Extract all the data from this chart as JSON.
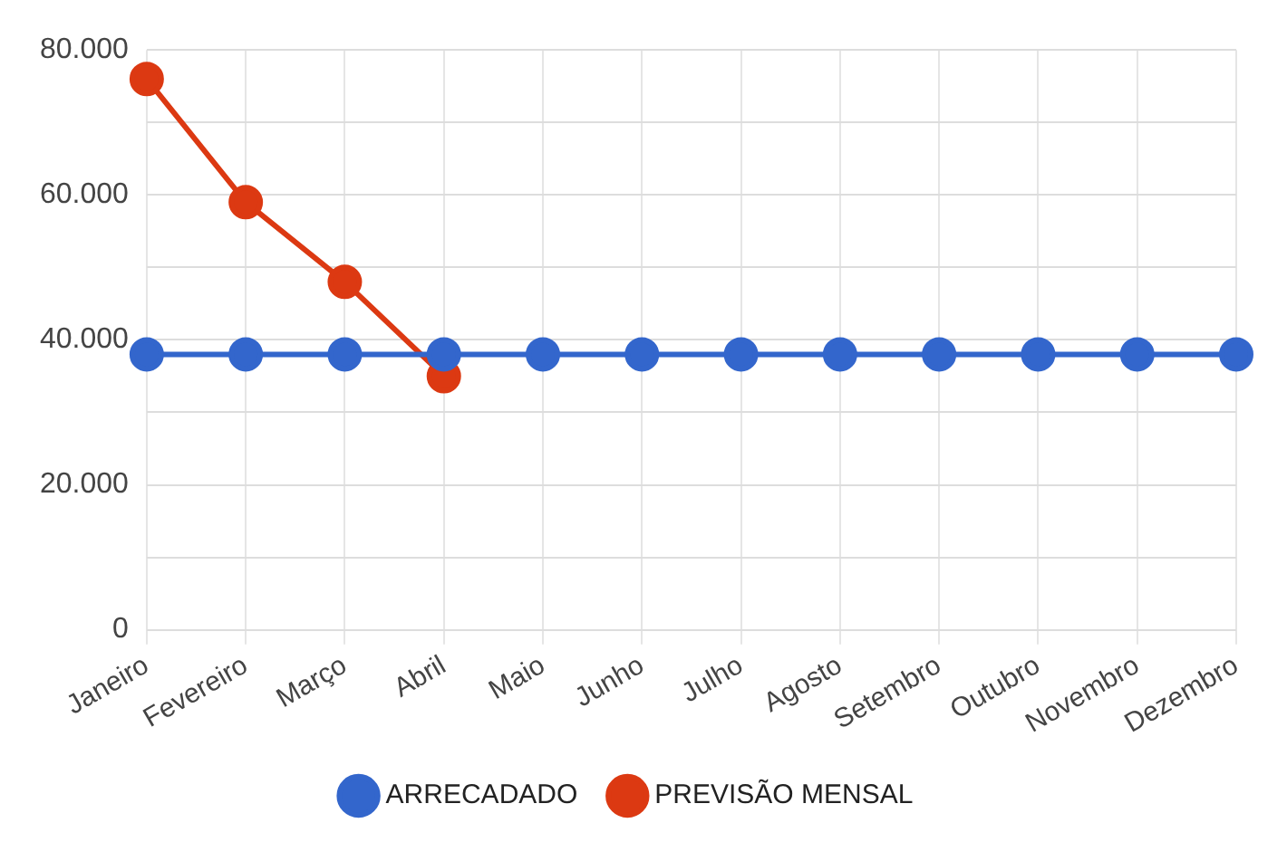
{
  "chart_data": {
    "type": "line",
    "categories": [
      "Janeiro",
      "Fevereiro",
      "Março",
      "Abril",
      "Maio",
      "Junho",
      "Julho",
      "Agosto",
      "Setembro",
      "Outubro",
      "Novembro",
      "Dezembro"
    ],
    "series": [
      {
        "name": "ARRECADADO",
        "color": "#3366cc",
        "values": [
          38000,
          38000,
          38000,
          38000,
          38000,
          38000,
          38000,
          38000,
          38000,
          38000,
          38000,
          38000
        ]
      },
      {
        "name": "PREVISÃO MENSAL",
        "color": "#dc3912",
        "values": [
          76000,
          59000,
          48000,
          35000,
          null,
          null,
          null,
          null,
          null,
          null,
          null,
          null
        ]
      }
    ],
    "ylim": [
      0,
      80000
    ],
    "yticks": [
      {
        "value": 0,
        "label": "0"
      },
      {
        "value": 10000,
        "label": null
      },
      {
        "value": 20000,
        "label": "20.000"
      },
      {
        "value": 30000,
        "label": null
      },
      {
        "value": 40000,
        "label": "40.000"
      },
      {
        "value": 50000,
        "label": null
      },
      {
        "value": 60000,
        "label": "60.000"
      },
      {
        "value": 70000,
        "label": null
      },
      {
        "value": 80000,
        "label": "80.000"
      }
    ],
    "grid": true,
    "legend": "bottom",
    "marker": "circle",
    "line_style": "solid"
  }
}
